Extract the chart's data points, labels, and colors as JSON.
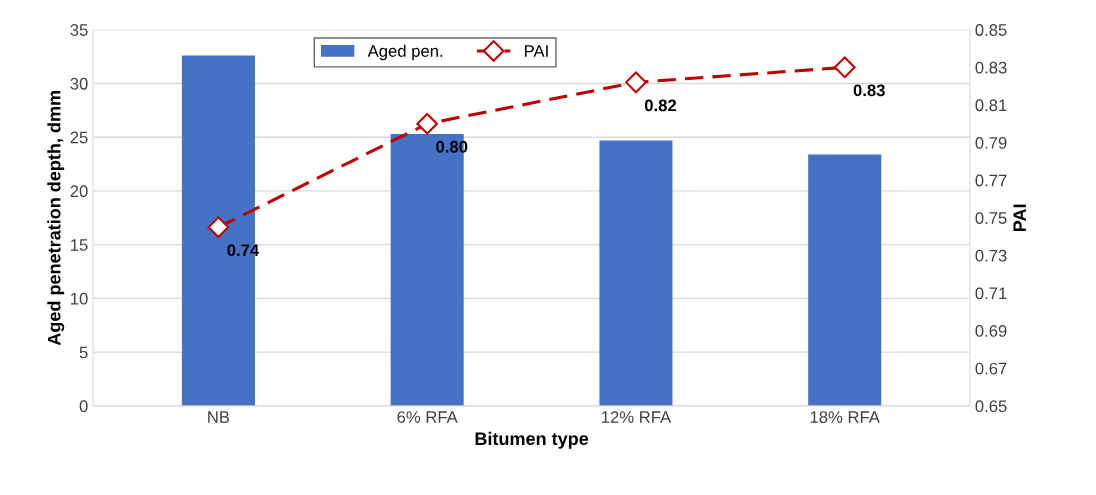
{
  "chart_data": {
    "type": "bar",
    "xlabel": "Bitumen type",
    "ylabel": "Aged penetration depth, dmm",
    "y2label": "PAI",
    "categories": [
      "NB",
      "6% RFA",
      "12% RFA",
      "18% RFA"
    ],
    "series": [
      {
        "name": "Aged pen.",
        "color": "#4472c4",
        "values": [
          32.6,
          25.3,
          24.7,
          23.4
        ]
      },
      {
        "name": "PAI",
        "type": "line",
        "axis": "y2",
        "color": "#c00000",
        "marker": "diamond",
        "line_style": "dashed",
        "values": [
          0.745,
          0.8,
          0.822,
          0.83
        ],
        "value_labels": [
          "0.74",
          "0.80",
          "0.82",
          "0.83"
        ]
      }
    ],
    "ylim": [
      0,
      35
    ],
    "yticks": [
      0,
      5,
      10,
      15,
      20,
      25,
      30,
      35
    ],
    "y2lim": [
      0.65,
      0.85
    ],
    "y2ticks": [
      0.65,
      0.67,
      0.69,
      0.71,
      0.73,
      0.75,
      0.77,
      0.79,
      0.81,
      0.83,
      0.85
    ],
    "grid": "y",
    "legend": "top"
  }
}
